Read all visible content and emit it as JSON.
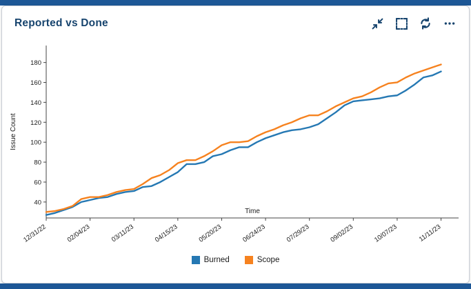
{
  "colors": {
    "accent_bar": "#1d5796",
    "title_text": "#17446e",
    "axis": "#444444",
    "tick_text": "#1a1a1a"
  },
  "card": {
    "title": "Reported vs Done",
    "icons": [
      {
        "name": "collapse-icon"
      },
      {
        "name": "fit-to-screen-icon"
      },
      {
        "name": "refresh-icon"
      },
      {
        "name": "more-menu-icon"
      }
    ]
  },
  "chart_data": {
    "type": "line",
    "title": "Reported vs Done",
    "xlabel": "Time",
    "ylabel": "Issue Count",
    "legend_position": "bottom",
    "grid": false,
    "xlim": [
      0,
      47
    ],
    "ylim": [
      24,
      197
    ],
    "yticks": [
      40,
      60,
      80,
      100,
      120,
      140,
      160,
      180
    ],
    "x_tick_step": 5,
    "x_tick_labels": [
      "12/31/22",
      "02/04/23",
      "03/11/23",
      "04/15/23",
      "05/20/23",
      "06/24/23",
      "07/29/23",
      "09/02/23",
      "10/07/23",
      "11/11/23"
    ],
    "x_unit": "weeks",
    "series": [
      {
        "name": "Burned",
        "color": "#2578b3",
        "values": [
          27,
          29,
          32,
          35,
          40,
          42,
          44,
          45,
          48,
          50,
          51,
          55,
          56,
          60,
          65,
          70,
          78,
          78,
          80,
          86,
          88,
          92,
          95,
          95,
          100,
          104,
          107,
          110,
          112,
          113,
          115,
          118,
          124,
          130,
          137,
          141,
          142,
          143,
          144,
          146,
          147,
          152,
          158,
          165,
          167,
          171
        ]
      },
      {
        "name": "Scope",
        "color": "#f6821f",
        "values": [
          30,
          31,
          33,
          36,
          43,
          45,
          45,
          47,
          50,
          52,
          53,
          58,
          64,
          67,
          72,
          79,
          82,
          82,
          86,
          91,
          97,
          100,
          100,
          101,
          106,
          110,
          113,
          117,
          120,
          124,
          127,
          127,
          131,
          136,
          140,
          144,
          146,
          150,
          155,
          159,
          160,
          165,
          169,
          172,
          175,
          178
        ]
      }
    ]
  }
}
